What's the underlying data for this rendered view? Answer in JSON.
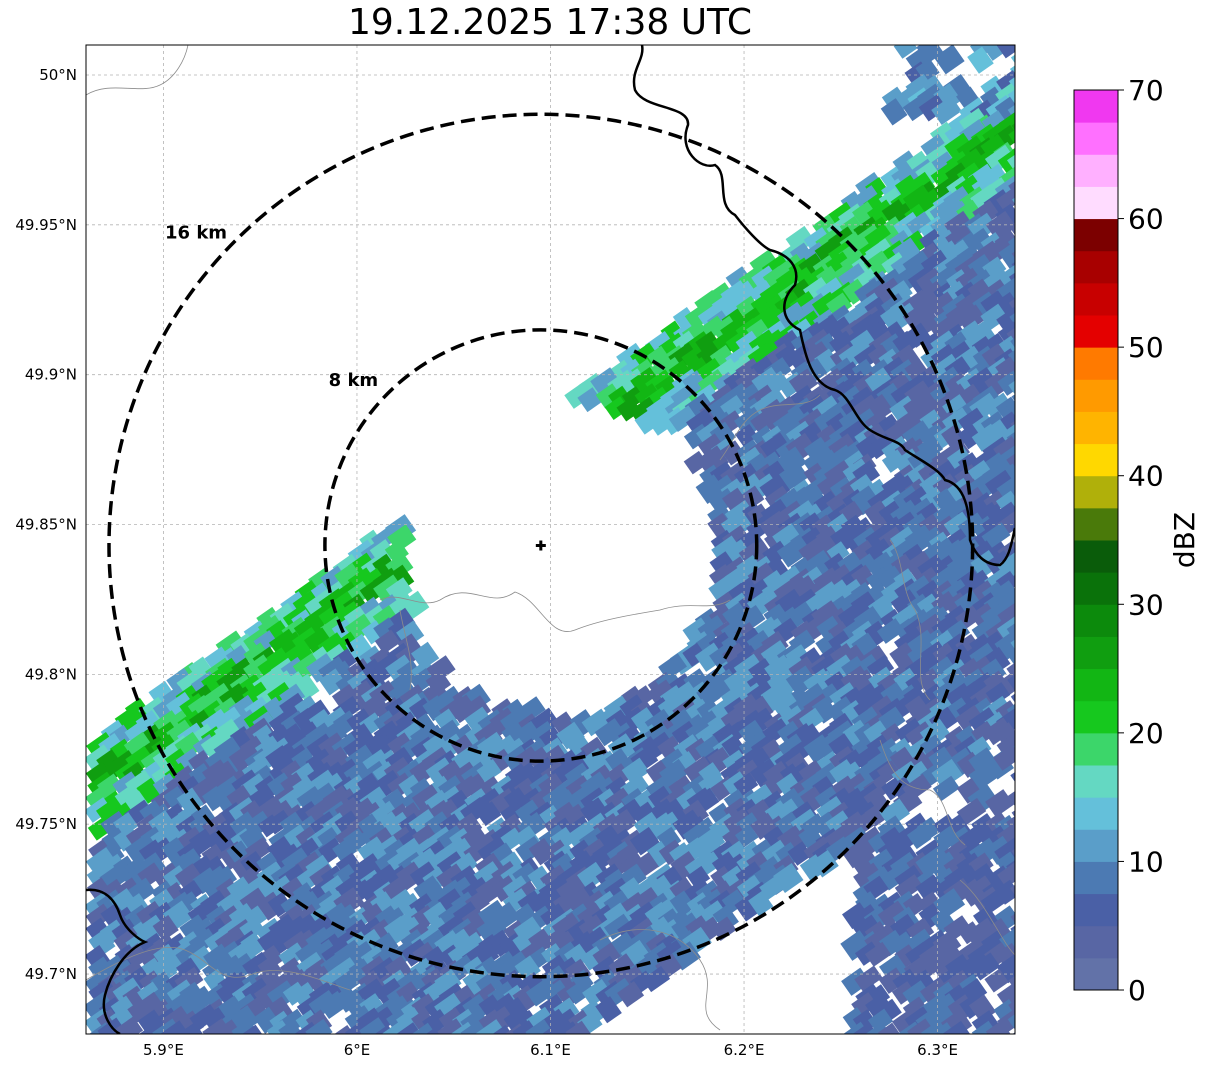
{
  "title": "19.12.2025 17:38 UTC",
  "map": {
    "lon_ticks": [
      {
        "value": 5.9,
        "label": "5.9°E"
      },
      {
        "value": 6.0,
        "label": "6°E"
      },
      {
        "value": 6.1,
        "label": "6.1°E"
      },
      {
        "value": 6.2,
        "label": "6.2°E"
      },
      {
        "value": 6.3,
        "label": "6.3°E"
      }
    ],
    "lat_ticks": [
      {
        "value": 50.0,
        "label": "50°N"
      },
      {
        "value": 49.95,
        "label": "49.95°N"
      },
      {
        "value": 49.9,
        "label": "49.9°N"
      },
      {
        "value": 49.85,
        "label": "49.85°N"
      },
      {
        "value": 49.8,
        "label": "49.8°N"
      },
      {
        "value": 49.75,
        "label": "49.75°N"
      },
      {
        "value": 49.7,
        "label": "49.7°N"
      }
    ],
    "lon_range": [
      5.86,
      6.34
    ],
    "lat_range": [
      49.68,
      50.01
    ],
    "radar_site": {
      "lon": 6.095,
      "lat": 49.843
    },
    "range_rings": [
      {
        "label": "8 km",
        "radius_km": 8
      },
      {
        "label": "16 km",
        "radius_km": 16
      }
    ]
  },
  "colorbar": {
    "label": "dBZ",
    "min": 0,
    "max": 70,
    "ticks": [
      0,
      10,
      20,
      30,
      40,
      50,
      60,
      70
    ],
    "colors": [
      "#6272a8",
      "#5866a4",
      "#4a60a6",
      "#4c7ab3",
      "#5a9ec9",
      "#64c0da",
      "#64d8c2",
      "#3cd66a",
      "#16c81e",
      "#12b614",
      "#109e10",
      "#0c8a0c",
      "#0a720a",
      "#0a5c0a",
      "#4a7a0a",
      "#b0b00a",
      "#ffd800",
      "#ffb400",
      "#ff9a00",
      "#ff7a00",
      "#e40000",
      "#c80000",
      "#a80000",
      "#7c0000",
      "#ffdcff",
      "#ffb0ff",
      "#ff70ff",
      "#f038f0"
    ]
  }
}
